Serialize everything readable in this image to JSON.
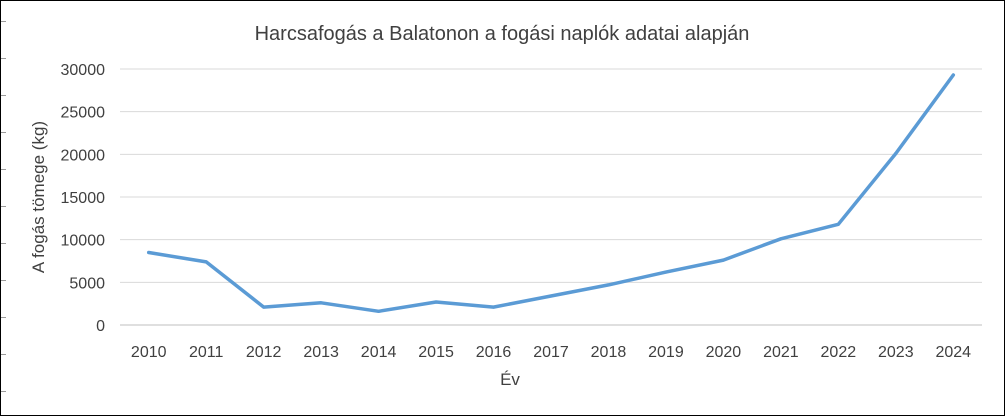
{
  "chart_data": {
    "type": "line",
    "title": "Harcsafogás a Balatonon a fogási naplók adatai alapján",
    "xlabel": "Év",
    "ylabel": "A fogás tömege (kg)",
    "categories": [
      "2010",
      "2011",
      "2012",
      "2013",
      "2014",
      "2015",
      "2016",
      "2017",
      "2018",
      "2019",
      "2020",
      "2021",
      "2022",
      "2023",
      "2024"
    ],
    "series": [
      {
        "values": [
          8500,
          7400,
          2100,
          2600,
          1600,
          2700,
          2100,
          3400,
          4700,
          6200,
          7600,
          10100,
          11800,
          20100,
          29300
        ]
      }
    ],
    "ylim": [
      0,
      30000
    ],
    "yticks": [
      0,
      5000,
      10000,
      15000,
      20000,
      25000,
      30000
    ],
    "grid": true,
    "legend": "none",
    "line_color": "#5b9bd5",
    "grid_color": "#d9d9d9",
    "text_color": "#404040"
  }
}
